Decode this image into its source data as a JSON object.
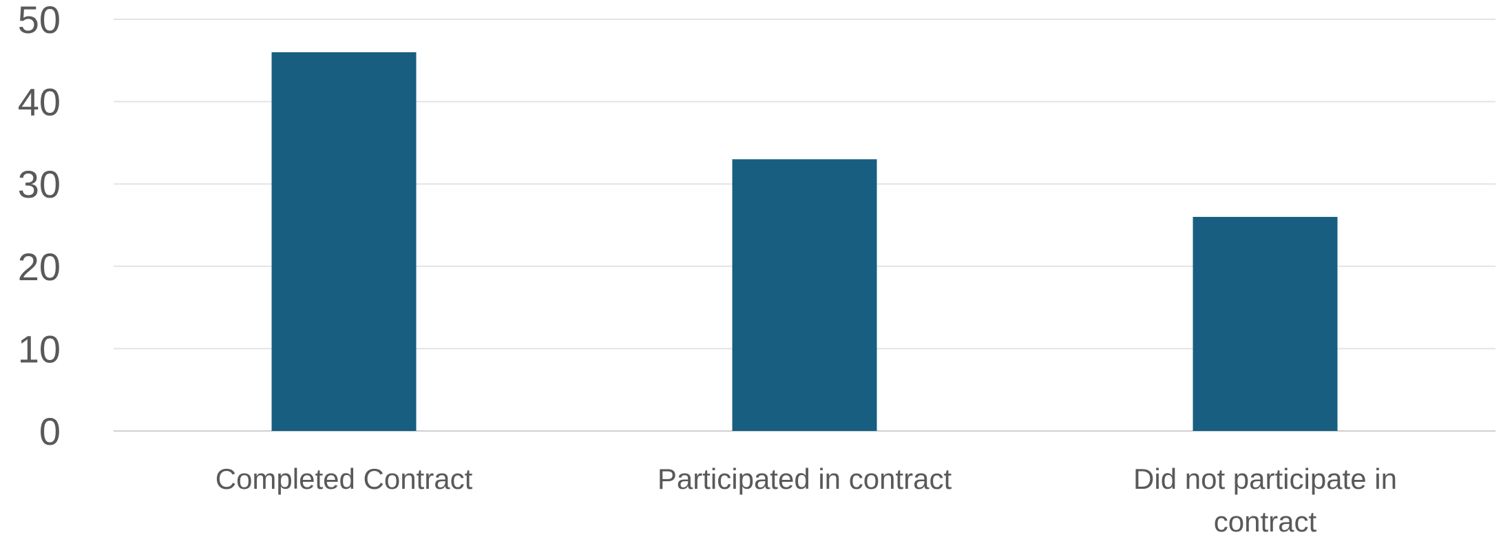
{
  "chart_data": {
    "type": "bar",
    "categories": [
      [
        "Completed Contract"
      ],
      [
        "Participated in contract"
      ],
      [
        "Did not participate in",
        "contract"
      ]
    ],
    "values": [
      46,
      33,
      26
    ],
    "ylim": [
      0,
      50
    ],
    "yticks": [
      0,
      10,
      20,
      30,
      40,
      50
    ],
    "grid": true,
    "bar_color": "#185e80",
    "title": "",
    "xlabel": "",
    "ylabel": ""
  }
}
